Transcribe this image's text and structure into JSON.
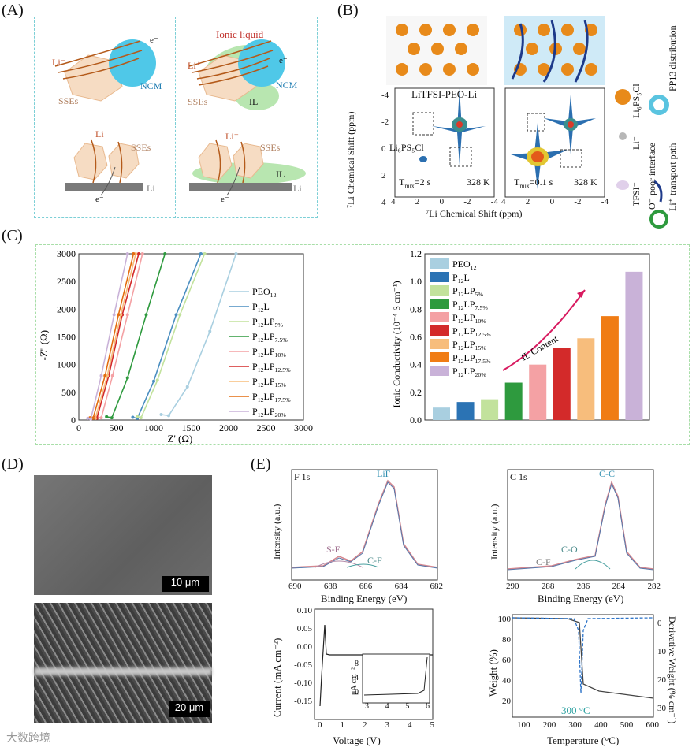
{
  "panels": {
    "A": {
      "letter": "(A)",
      "left": {
        "li": "Li⁻",
        "ssei": "SSEs",
        "ncm": "NCM",
        "e1": "e⁻",
        "li2": "Li",
        "sses2": "SSEs",
        "e2": "e⁻",
        "lim": "Li"
      },
      "right": {
        "ionic": "Ionic liquid",
        "li": "Li⁺",
        "ssei": "SSEs",
        "ncm": "NCM",
        "il": "IL",
        "e1": "e⁻",
        "li2": "Li⁻",
        "sses2": "SSEs",
        "il2": "IL",
        "e2": "e⁻",
        "lim": "Li"
      }
    },
    "B": {
      "letter": "(B)",
      "title": "LiTFSI-PEO-Li",
      "ylabel": "⁷Li Chemical Shift (ppm)",
      "xlabel": "⁷Li Chemical Shift (ppm)",
      "yticks": [
        "-4",
        "-2",
        "0",
        "2",
        "4"
      ],
      "xticks_left": [
        "4",
        "2",
        "0",
        "-2",
        "-4"
      ],
      "xticks_right": [
        "4",
        "2",
        "0",
        "-2",
        "-4"
      ],
      "lps": "Li₆PS₅Cl",
      "tmix1": "T",
      "tmix1_sub": "mix",
      "tmix1_val": "=2 s",
      "temp1": "328 K",
      "tmix2_val": "=0.1 s",
      "temp2": "328 K",
      "legend": {
        "lps": "Li₆PS₅Cl",
        "li": "Li⁻",
        "tfsi": "TFSI⁻",
        "opoor": "O⁻ poor interface",
        "pp13": "PP13 distribution",
        "path": "Li⁺ transport path"
      }
    },
    "C": {
      "letter": "(C)"
    },
    "D": {
      "letter": "(D)",
      "scale1": "10 μm",
      "scale2": "20 μm"
    },
    "E": {
      "letter": "(E)",
      "f1s": {
        "title": "F 1s",
        "lif": "LiF",
        "sf": "S-F",
        "cf": "C-F",
        "xlabel": "Binding Energy (eV)",
        "ylabel": "Intensity (a.u.)",
        "xticks": [
          "690",
          "688",
          "686",
          "684",
          "682"
        ]
      },
      "c1s": {
        "title": "C 1s",
        "cc": "C-C",
        "co": "C-O",
        "cf": "C-F",
        "xlabel": "Binding Energy (eV)",
        "ylabel": "Intensity (a.u.)",
        "xticks": [
          "290",
          "288",
          "286",
          "284",
          "282"
        ]
      },
      "lsv": {
        "xlabel": "Voltage (V)",
        "ylabel": "Current (mA cm⁻²)",
        "yticks": [
          "0.10",
          "0.05",
          "0.00",
          "-0.05",
          "-0.10",
          "-0.15"
        ],
        "xticks": [
          "0",
          "1",
          "2",
          "3",
          "4",
          "5"
        ],
        "inset_ylabel": "μA cm⁻²",
        "inset_yticks": [
          "8",
          "4",
          "0"
        ],
        "inset_xticks": [
          "3",
          "4",
          "5",
          "6"
        ]
      },
      "tga": {
        "xlabel": "Temperature (°C)",
        "ylabel": "Weight (%)",
        "y2label": "Derivative Weight (% cm⁻¹)",
        "annot": "300 °C",
        "yticks": [
          "100",
          "80",
          "60",
          "40",
          "20"
        ],
        "y2ticks": [
          "0",
          "10",
          "20",
          "30"
        ],
        "xticks": [
          "100",
          "200",
          "300",
          "400",
          "500",
          "600"
        ]
      }
    }
  },
  "watermark": "大数跨境",
  "colors": {
    "cyan_dash": "#7ccfd6",
    "green_dash": "#a8dea8"
  },
  "chart_data": [
    {
      "type": "line",
      "xlabel": "Z' (Ω)",
      "ylabel": "-Z'' (Ω)",
      "xlim": [
        0,
        3000
      ],
      "ylim": [
        0,
        3000
      ],
      "xticks": [
        "0",
        "500",
        "1000",
        "1500",
        "2000",
        "2500",
        "3000"
      ],
      "yticks": [
        "0",
        "500",
        "1000",
        "1500",
        "2000",
        "2500",
        "3000"
      ],
      "series": [
        {
          "name": "PEO",
          "sub": "12",
          "color": "#a9cfe0",
          "x": [
            1100,
            1200,
            1450,
            1750,
            2100
          ],
          "y": [
            100,
            80,
            600,
            1600,
            3000
          ]
        },
        {
          "name": "P",
          "sub": "12",
          "suffix": "L",
          "color": "#4a8ec0",
          "x": [
            720,
            780,
            1000,
            1300,
            1630
          ],
          "y": [
            50,
            30,
            700,
            1900,
            3000
          ]
        },
        {
          "name": "P",
          "sub": "12",
          "suffix": "LP",
          "sub2": "5%",
          "color": "#c2e29c",
          "x": [
            780,
            830,
            1050,
            1350,
            1680
          ],
          "y": [
            60,
            40,
            720,
            1900,
            3000
          ]
        },
        {
          "name": "P",
          "sub": "12",
          "suffix": "LP",
          "sub2": "7.5%",
          "color": "#2e9a3e",
          "x": [
            370,
            440,
            650,
            900,
            1150
          ],
          "y": [
            60,
            40,
            760,
            1900,
            3000
          ]
        },
        {
          "name": "P",
          "sub": "12",
          "suffix": "LP",
          "sub2": "10%",
          "color": "#f4a1a4",
          "x": [
            250,
            300,
            450,
            650,
            850
          ],
          "y": [
            50,
            40,
            800,
            1900,
            3000
          ]
        },
        {
          "name": "P",
          "sub": "12",
          "suffix": "LP",
          "sub2": "12.5%",
          "color": "#d32a2a",
          "x": [
            200,
            240,
            400,
            580,
            800
          ],
          "y": [
            40,
            30,
            800,
            1900,
            3000
          ]
        },
        {
          "name": "P",
          "sub": "12",
          "suffix": "LP",
          "sub2": "15%",
          "color": "#f7bd7c",
          "x": [
            180,
            220,
            380,
            560,
            760
          ],
          "y": [
            40,
            30,
            800,
            1900,
            3000
          ]
        },
        {
          "name": "P",
          "sub": "12",
          "suffix": "LP",
          "sub2": "17.5%",
          "color": "#e36d10",
          "x": [
            150,
            190,
            350,
            530,
            730
          ],
          "y": [
            40,
            30,
            800,
            1900,
            3000
          ]
        },
        {
          "name": "P",
          "sub": "12",
          "suffix": "LP",
          "sub2": "20%",
          "color": "#c9b2d8",
          "x": [
            120,
            160,
            300,
            470,
            650
          ],
          "y": [
            30,
            20,
            800,
            1900,
            3000
          ]
        }
      ]
    },
    {
      "type": "bar",
      "ylabel": "Ionic Conductivity (10⁻⁴ S cm⁻¹)",
      "ylim": [
        0,
        1.2
      ],
      "yticks": [
        "0.0",
        "0.2",
        "0.4",
        "0.6",
        "0.8",
        "1.0",
        "1.2"
      ],
      "annotation": "IL Content",
      "categories": [
        "PEO12",
        "P12L",
        "P12LP5%",
        "P12LP7.5%",
        "P12LP10%",
        "P12LP12.5%",
        "P12LP15%",
        "P12LP17.5%",
        "P12LP20%"
      ],
      "values": [
        0.09,
        0.13,
        0.15,
        0.27,
        0.4,
        0.52,
        0.59,
        0.75,
        1.07
      ],
      "colors": [
        "#a9cfe0",
        "#2b73b4",
        "#c2e29c",
        "#2e9a3e",
        "#f4a1a4",
        "#d32a2a",
        "#f7bd7c",
        "#f07c14",
        "#c9b2d8"
      ],
      "legend": [
        {
          "name": "PEO",
          "sub": "12"
        },
        {
          "name": "P",
          "sub": "12",
          "suffix": "L"
        },
        {
          "name": "P",
          "sub": "12",
          "suffix": "LP",
          "sub2": "5%"
        },
        {
          "name": "P",
          "sub": "12",
          "suffix": "LP",
          "sub2": "7.5%"
        },
        {
          "name": "P",
          "sub": "12",
          "suffix": "LP",
          "sub2": "10%"
        },
        {
          "name": "P",
          "sub": "12",
          "suffix": "LP",
          "sub2": "12.5%"
        },
        {
          "name": "P",
          "sub": "12",
          "suffix": "LP",
          "sub2": "15%"
        },
        {
          "name": "P",
          "sub": "12",
          "suffix": "LP",
          "sub2": "17.5%"
        },
        {
          "name": "P",
          "sub": "12",
          "suffix": "LP",
          "sub2": "20%"
        }
      ]
    }
  ]
}
